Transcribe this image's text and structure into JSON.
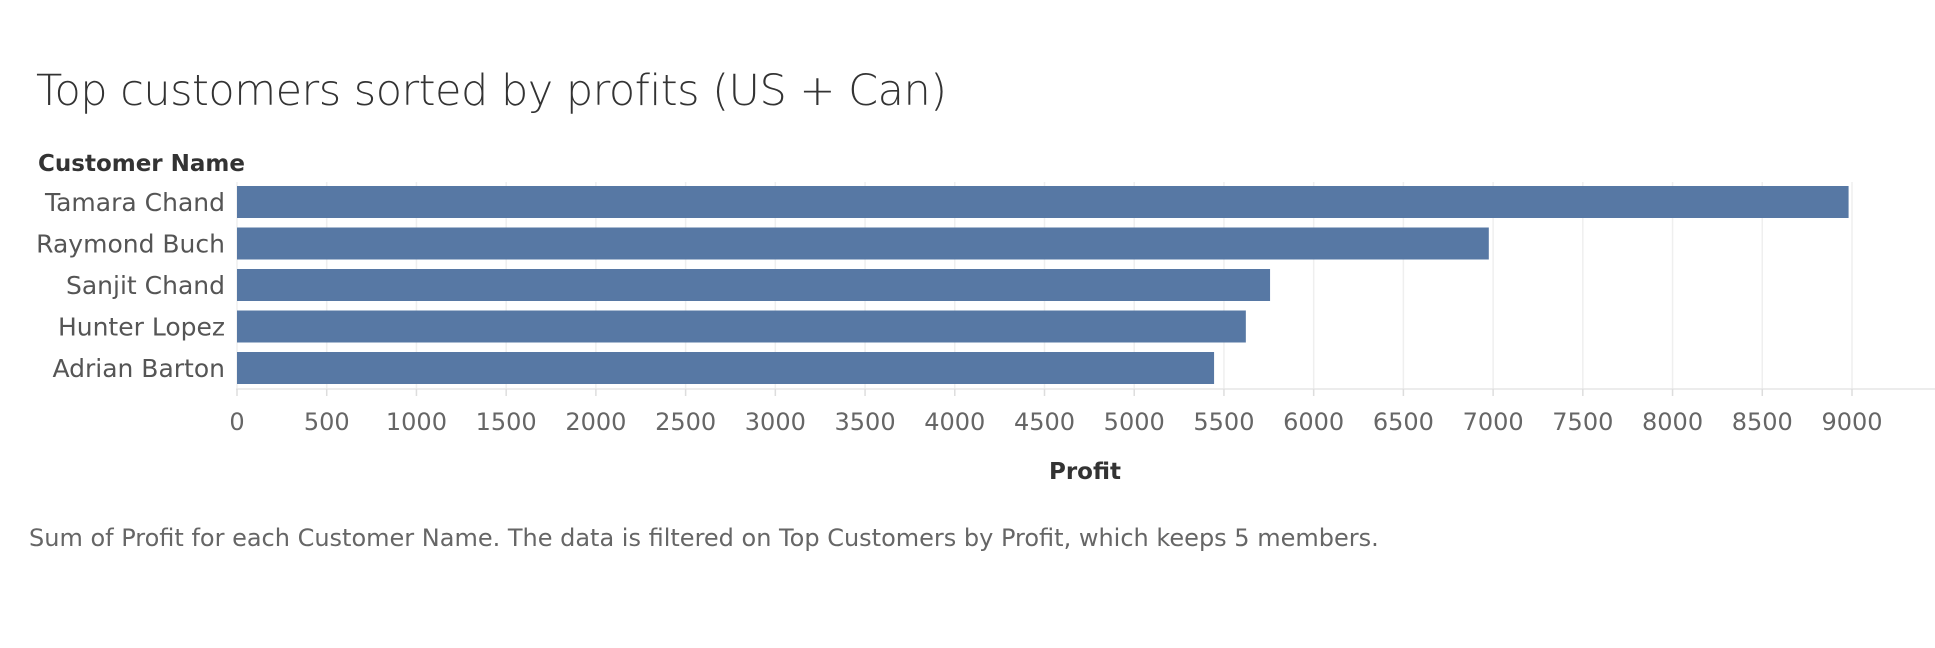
{
  "title": "Top customers sorted by profits (US + Can)",
  "caption": "Sum of Profit for each Customer Name. The data is filtered on Top Customers by Profit, which keeps 5 members.",
  "bar_color": "#5778a4",
  "chart_data": {
    "type": "bar",
    "orientation": "horizontal",
    "title": "Top customers sorted by profits (US + Can)",
    "xlabel": "Profit",
    "ylabel": "Customer Name",
    "categories": [
      "Tamara Chand",
      "Raymond Buch",
      "Sanjit Chand",
      "Hunter Lopez",
      "Adrian Barton"
    ],
    "values": [
      8981,
      6976,
      5757,
      5622,
      5445
    ],
    "xlim": [
      0,
      9400
    ],
    "xticks": [
      0,
      500,
      1000,
      1500,
      2000,
      2500,
      3000,
      3500,
      4000,
      4500,
      5000,
      5500,
      6000,
      6500,
      7000,
      7500,
      8000,
      8500,
      9000
    ],
    "grid": true
  }
}
